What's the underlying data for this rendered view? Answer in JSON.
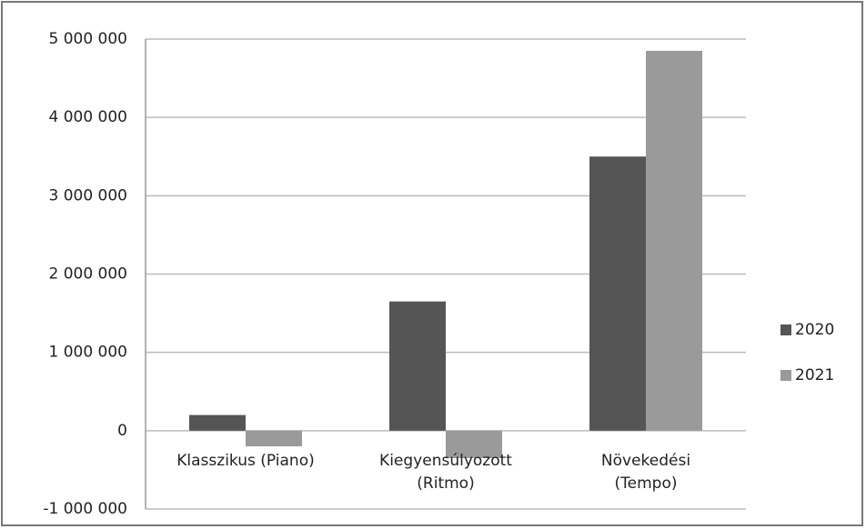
{
  "chart_data": {
    "type": "bar",
    "categories": [
      "Klasszikus (Piano)",
      "Kiegyensúlyozott\n(Ritmo)",
      "Növekedési\n(Tempo)"
    ],
    "series": [
      {
        "name": "2020",
        "color": "#555555",
        "values": [
          200000,
          1650000,
          3500000
        ]
      },
      {
        "name": "2021",
        "color": "#9a9a9a",
        "values": [
          -200000,
          -350000,
          4850000
        ]
      }
    ],
    "ylim": [
      -1000000,
      5000000
    ],
    "yticks": [
      {
        "value": -1000000,
        "label": "-1 000 000"
      },
      {
        "value": 0,
        "label": "0"
      },
      {
        "value": 1000000,
        "label": "1 000 000"
      },
      {
        "value": 2000000,
        "label": "2 000 000"
      },
      {
        "value": 3000000,
        "label": "3 000 000"
      },
      {
        "value": 4000000,
        "label": "4 000 000"
      },
      {
        "value": 5000000,
        "label": "5 000 000"
      }
    ],
    "grid": true,
    "legend": "right"
  }
}
